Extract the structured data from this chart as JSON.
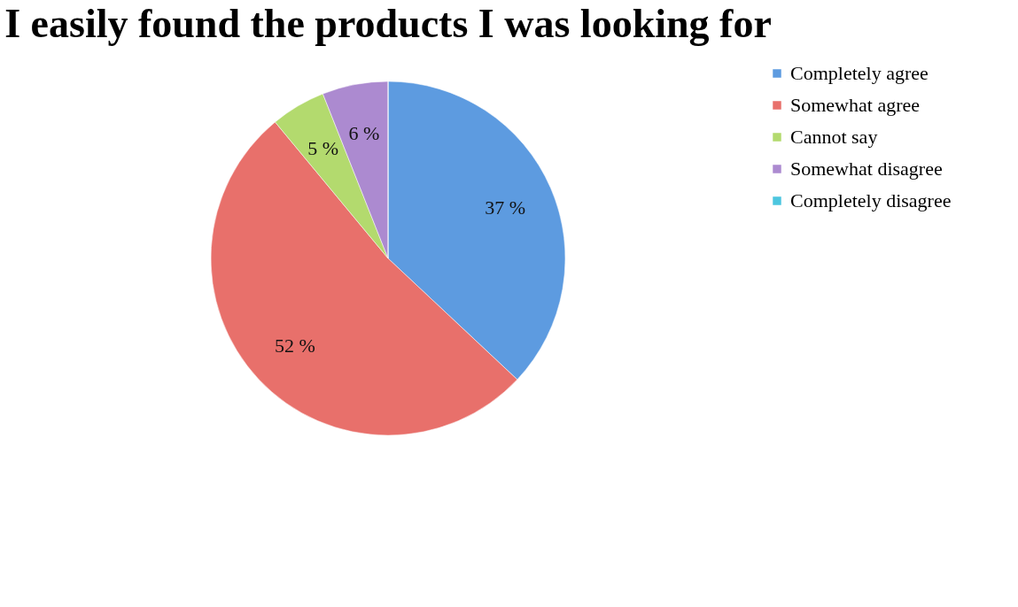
{
  "chart_data": {
    "type": "pie",
    "title": "I easily found the products I was looking for",
    "categories": [
      "Completely agree",
      "Somewhat agree",
      "Cannot say",
      "Somewhat disagree",
      "Completely disagree"
    ],
    "values": [
      37,
      52,
      5,
      6,
      0
    ],
    "colors": [
      "#5d9be0",
      "#e8706b",
      "#b3da6e",
      "#ac8ad0",
      "#4cc6df"
    ],
    "value_labels": [
      "37 %",
      "52 %",
      "5 %",
      "6 %",
      null
    ],
    "legend": "right"
  }
}
